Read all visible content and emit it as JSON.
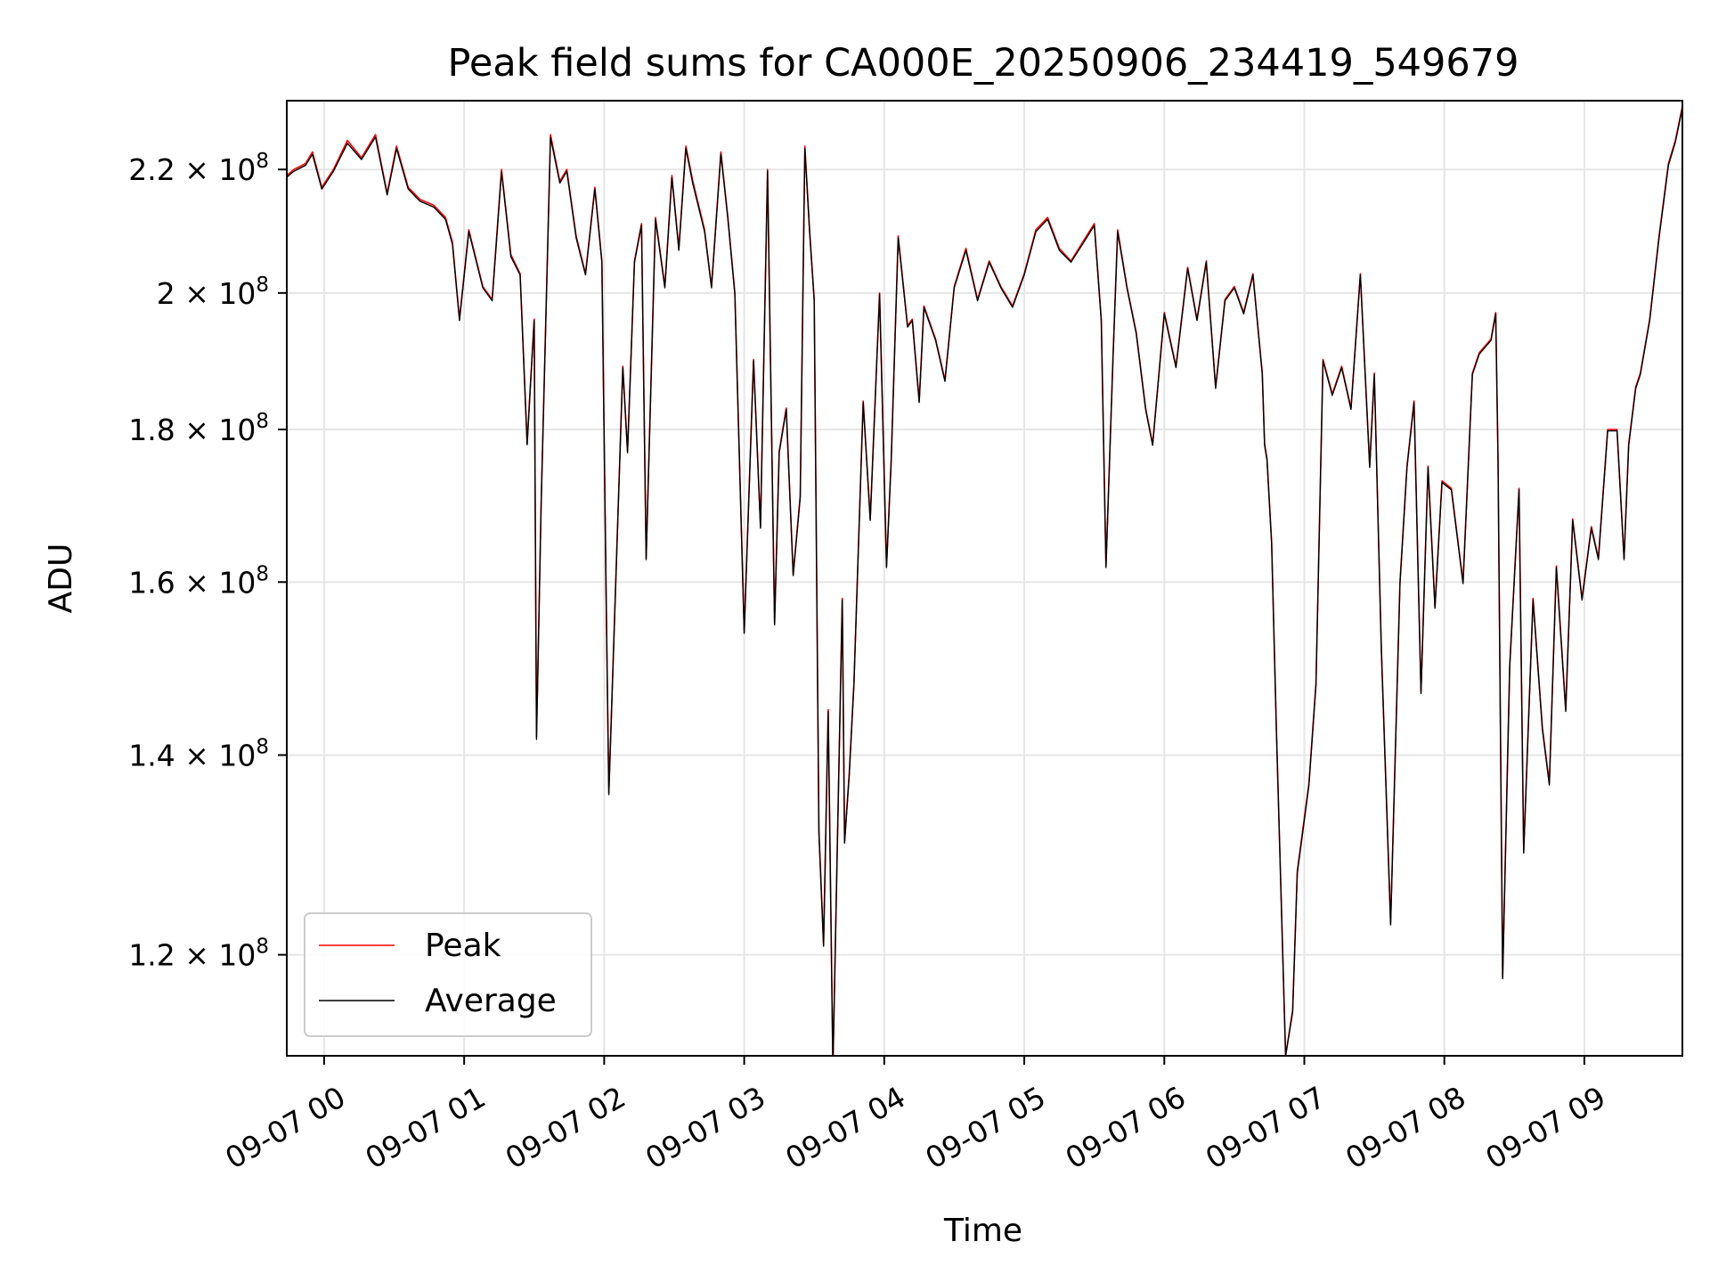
{
  "chart_data": {
    "type": "line",
    "title": "Peak field sums for CA000E_20250906_234419_549679",
    "xlabel": "Time",
    "ylabel": "ADU",
    "y_scale": "log",
    "ylim": [
      111000000,
      232000000
    ],
    "xlim": [
      "2025-09-06 23:44",
      "2025-09-07 09:42"
    ],
    "grid": true,
    "legend_position": "lower-left",
    "x_ticks": [
      {
        "t": "2025-09-07 00:00",
        "label": "09-07 00"
      },
      {
        "t": "2025-09-07 01:00",
        "label": "09-07 01"
      },
      {
        "t": "2025-09-07 02:00",
        "label": "09-07 02"
      },
      {
        "t": "2025-09-07 03:00",
        "label": "09-07 03"
      },
      {
        "t": "2025-09-07 04:00",
        "label": "09-07 04"
      },
      {
        "t": "2025-09-07 05:00",
        "label": "09-07 05"
      },
      {
        "t": "2025-09-07 06:00",
        "label": "09-07 06"
      },
      {
        "t": "2025-09-07 07:00",
        "label": "09-07 07"
      },
      {
        "t": "2025-09-07 08:00",
        "label": "09-07 08"
      },
      {
        "t": "2025-09-07 09:00",
        "label": "09-07 09"
      }
    ],
    "y_ticks": [
      {
        "value": 120000000,
        "mant": "1.2",
        "exp": "8"
      },
      {
        "value": 140000000,
        "mant": "1.4",
        "exp": "8"
      },
      {
        "value": 160000000,
        "mant": "1.6",
        "exp": "8"
      },
      {
        "value": 180000000,
        "mant": "1.8",
        "exp": "8"
      },
      {
        "value": 200000000,
        "mant": "2",
        "exp": "8"
      },
      {
        "value": 220000000,
        "mant": "2.2",
        "exp": "8"
      }
    ],
    "series": [
      {
        "name": "Peak",
        "color": "#ff0000",
        "x": [
          "2025-09-06 23:44",
          "2025-09-06 23:47",
          "2025-09-06 23:52",
          "2025-09-06 23:55",
          "2025-09-06 23:59",
          "2025-09-07 00:04",
          "2025-09-07 00:10",
          "2025-09-07 00:16",
          "2025-09-07 00:22",
          "2025-09-07 00:27",
          "2025-09-07 00:31",
          "2025-09-07 00:36",
          "2025-09-07 00:41",
          "2025-09-07 00:47",
          "2025-09-07 00:52",
          "2025-09-07 00:55",
          "2025-09-07 00:58",
          "2025-09-07 01:02",
          "2025-09-07 01:08",
          "2025-09-07 01:12",
          "2025-09-07 01:16",
          "2025-09-07 01:20",
          "2025-09-07 01:24",
          "2025-09-07 01:27",
          "2025-09-07 01:28",
          "2025-09-07 01:30",
          "2025-09-07 01:31",
          "2025-09-07 01:33",
          "2025-09-07 01:37",
          "2025-09-07 01:41",
          "2025-09-07 01:44",
          "2025-09-07 01:48",
          "2025-09-07 01:52",
          "2025-09-07 01:56",
          "2025-09-07 01:59",
          "2025-09-07 02:01",
          "2025-09-07 02:02",
          "2025-09-07 02:04",
          "2025-09-07 02:08",
          "2025-09-07 02:10",
          "2025-09-07 02:13",
          "2025-09-07 02:16",
          "2025-09-07 02:18",
          "2025-09-07 02:22",
          "2025-09-07 02:26",
          "2025-09-07 02:29",
          "2025-09-07 02:32",
          "2025-09-07 02:35",
          "2025-09-07 02:38",
          "2025-09-07 02:43",
          "2025-09-07 02:46",
          "2025-09-07 02:50",
          "2025-09-07 02:53",
          "2025-09-07 02:56",
          "2025-09-07 03:00",
          "2025-09-07 03:04",
          "2025-09-07 03:07",
          "2025-09-07 03:10",
          "2025-09-07 03:13",
          "2025-09-07 03:15",
          "2025-09-07 03:18",
          "2025-09-07 03:21",
          "2025-09-07 03:24",
          "2025-09-07 03:26",
          "2025-09-07 03:28",
          "2025-09-07 03:30",
          "2025-09-07 03:32",
          "2025-09-07 03:34",
          "2025-09-07 03:36",
          "2025-09-07 03:38",
          "2025-09-07 03:42",
          "2025-09-07 03:43",
          "2025-09-07 03:45",
          "2025-09-07 03:47",
          "2025-09-07 03:51",
          "2025-09-07 03:54",
          "2025-09-07 03:58",
          "2025-09-07 04:01",
          "2025-09-07 04:03",
          "2025-09-07 04:06",
          "2025-09-07 04:10",
          "2025-09-07 04:12",
          "2025-09-07 04:15",
          "2025-09-07 04:17",
          "2025-09-07 04:22",
          "2025-09-07 04:26",
          "2025-09-07 04:30",
          "2025-09-07 04:35",
          "2025-09-07 04:40",
          "2025-09-07 04:45",
          "2025-09-07 04:50",
          "2025-09-07 04:55",
          "2025-09-07 05:00",
          "2025-09-07 05:05",
          "2025-09-07 05:10",
          "2025-09-07 05:15",
          "2025-09-07 05:20",
          "2025-09-07 05:25",
          "2025-09-07 05:30",
          "2025-09-07 05:33",
          "2025-09-07 05:35",
          "2025-09-07 05:38",
          "2025-09-07 05:40",
          "2025-09-07 05:44",
          "2025-09-07 05:48",
          "2025-09-07 05:52",
          "2025-09-07 05:55",
          "2025-09-07 06:00",
          "2025-09-07 06:05",
          "2025-09-07 06:10",
          "2025-09-07 06:14",
          "2025-09-07 06:18",
          "2025-09-07 06:22",
          "2025-09-07 06:26",
          "2025-09-07 06:30",
          "2025-09-07 06:34",
          "2025-09-07 06:38",
          "2025-09-07 06:42",
          "2025-09-07 06:43",
          "2025-09-07 06:44",
          "2025-09-07 06:46",
          "2025-09-07 06:48",
          "2025-09-07 06:52",
          "2025-09-07 06:55",
          "2025-09-07 06:57",
          "2025-09-07 07:02",
          "2025-09-07 07:05",
          "2025-09-07 07:08",
          "2025-09-07 07:12",
          "2025-09-07 07:16",
          "2025-09-07 07:20",
          "2025-09-07 07:24",
          "2025-09-07 07:28",
          "2025-09-07 07:30",
          "2025-09-07 07:33",
          "2025-09-07 07:37",
          "2025-09-07 07:41",
          "2025-09-07 07:44",
          "2025-09-07 07:47",
          "2025-09-07 07:50",
          "2025-09-07 07:53",
          "2025-09-07 07:56",
          "2025-09-07 07:59",
          "2025-09-07 08:03",
          "2025-09-07 08:08",
          "2025-09-07 08:12",
          "2025-09-07 08:15",
          "2025-09-07 08:20",
          "2025-09-07 08:22",
          "2025-09-07 08:23",
          "2025-09-07 08:25",
          "2025-09-07 08:28",
          "2025-09-07 08:32",
          "2025-09-07 08:34",
          "2025-09-07 08:38",
          "2025-09-07 08:42",
          "2025-09-07 08:45",
          "2025-09-07 08:48",
          "2025-09-07 08:52",
          "2025-09-07 08:55",
          "2025-09-07 08:59",
          "2025-09-07 09:03",
          "2025-09-07 09:06",
          "2025-09-07 09:10",
          "2025-09-07 09:14",
          "2025-09-07 09:17",
          "2025-09-07 09:19",
          "2025-09-07 09:22",
          "2025-09-07 09:24",
          "2025-09-07 09:28",
          "2025-09-07 09:32",
          "2025-09-07 09:36",
          "2025-09-07 09:39",
          "2025-09-07 09:42"
        ],
        "y": [
          219000000,
          220000000,
          221000000,
          223000000,
          217000000,
          220000000,
          225000000,
          222000000,
          226000000,
          216000000,
          224000000,
          217000000,
          215000000,
          214000000,
          212000000,
          208000000,
          196000000,
          210000000,
          201000000,
          199000000,
          220000000,
          206000000,
          203000000,
          178000000,
          184000000,
          196000000,
          142000000,
          170000000,
          226000000,
          218000000,
          220000000,
          209000000,
          203000000,
          217000000,
          205000000,
          155000000,
          136000000,
          152000000,
          189000000,
          177000000,
          205000000,
          211000000,
          163000000,
          212000000,
          201000000,
          219000000,
          207000000,
          224000000,
          218000000,
          210000000,
          201000000,
          223000000,
          212000000,
          200000000,
          154000000,
          190000000,
          167000000,
          220000000,
          155000000,
          177000000,
          183000000,
          161000000,
          171000000,
          224000000,
          210000000,
          199000000,
          132000000,
          121000000,
          145000000,
          110000000,
          158000000,
          131000000,
          138000000,
          148000000,
          184000000,
          168000000,
          200000000,
          162000000,
          176000000,
          209000000,
          195000000,
          196000000,
          184000000,
          198000000,
          193000000,
          187000000,
          201000000,
          207000000,
          199000000,
          205000000,
          201000000,
          198000000,
          203000000,
          210000000,
          212000000,
          207000000,
          205000000,
          208000000,
          211000000,
          196000000,
          162000000,
          190000000,
          210000000,
          201000000,
          194000000,
          183000000,
          178000000,
          197000000,
          189000000,
          204000000,
          196000000,
          205000000,
          186000000,
          199000000,
          201000000,
          197000000,
          203000000,
          188000000,
          178000000,
          176000000,
          165000000,
          143000000,
          111000000,
          115000000,
          128000000,
          137000000,
          148000000,
          190000000,
          185000000,
          189000000,
          183000000,
          203000000,
          175000000,
          188000000,
          152000000,
          123000000,
          160000000,
          175000000,
          184000000,
          147000000,
          175000000,
          157000000,
          173000000,
          172000000,
          160000000,
          188000000,
          191000000,
          193000000,
          197000000,
          176000000,
          118000000,
          150000000,
          172000000,
          130000000,
          158000000,
          143000000,
          137000000,
          162000000,
          145000000,
          168000000,
          158000000,
          167000000,
          163000000,
          180000000,
          180000000,
          163000000,
          178000000,
          186000000,
          188000000,
          196000000,
          209000000,
          221000000,
          225000000,
          231000000
        ]
      },
      {
        "name": "Average",
        "color": "#000000",
        "x": [
          "2025-09-06 23:44",
          "2025-09-06 23:47",
          "2025-09-06 23:52",
          "2025-09-06 23:55",
          "2025-09-06 23:59",
          "2025-09-07 00:04",
          "2025-09-07 00:10",
          "2025-09-07 00:16",
          "2025-09-07 00:22",
          "2025-09-07 00:27",
          "2025-09-07 00:31",
          "2025-09-07 00:36",
          "2025-09-07 00:41",
          "2025-09-07 00:47",
          "2025-09-07 00:52",
          "2025-09-07 00:55",
          "2025-09-07 00:58",
          "2025-09-07 01:02",
          "2025-09-07 01:08",
          "2025-09-07 01:12",
          "2025-09-07 01:16",
          "2025-09-07 01:20",
          "2025-09-07 01:24",
          "2025-09-07 01:27",
          "2025-09-07 01:28",
          "2025-09-07 01:30",
          "2025-09-07 01:31",
          "2025-09-07 01:33",
          "2025-09-07 01:37",
          "2025-09-07 01:41",
          "2025-09-07 01:44",
          "2025-09-07 01:48",
          "2025-09-07 01:52",
          "2025-09-07 01:56",
          "2025-09-07 01:59",
          "2025-09-07 02:01",
          "2025-09-07 02:02",
          "2025-09-07 02:04",
          "2025-09-07 02:08",
          "2025-09-07 02:10",
          "2025-09-07 02:13",
          "2025-09-07 02:16",
          "2025-09-07 02:18",
          "2025-09-07 02:22",
          "2025-09-07 02:26",
          "2025-09-07 02:29",
          "2025-09-07 02:32",
          "2025-09-07 02:35",
          "2025-09-07 02:38",
          "2025-09-07 02:43",
          "2025-09-07 02:46",
          "2025-09-07 02:50",
          "2025-09-07 02:53",
          "2025-09-07 02:56",
          "2025-09-07 03:00",
          "2025-09-07 03:04",
          "2025-09-07 03:07",
          "2025-09-07 03:10",
          "2025-09-07 03:13",
          "2025-09-07 03:15",
          "2025-09-07 03:18",
          "2025-09-07 03:21",
          "2025-09-07 03:24",
          "2025-09-07 03:26",
          "2025-09-07 03:28",
          "2025-09-07 03:30",
          "2025-09-07 03:32",
          "2025-09-07 03:34",
          "2025-09-07 03:36",
          "2025-09-07 03:38",
          "2025-09-07 03:42",
          "2025-09-07 03:43",
          "2025-09-07 03:45",
          "2025-09-07 03:47",
          "2025-09-07 03:51",
          "2025-09-07 03:54",
          "2025-09-07 03:58",
          "2025-09-07 04:01",
          "2025-09-07 04:03",
          "2025-09-07 04:06",
          "2025-09-07 04:10",
          "2025-09-07 04:12",
          "2025-09-07 04:15",
          "2025-09-07 04:17",
          "2025-09-07 04:22",
          "2025-09-07 04:26",
          "2025-09-07 04:30",
          "2025-09-07 04:35",
          "2025-09-07 04:40",
          "2025-09-07 04:45",
          "2025-09-07 04:50",
          "2025-09-07 04:55",
          "2025-09-07 05:00",
          "2025-09-07 05:05",
          "2025-09-07 05:10",
          "2025-09-07 05:15",
          "2025-09-07 05:20",
          "2025-09-07 05:25",
          "2025-09-07 05:30",
          "2025-09-07 05:33",
          "2025-09-07 05:35",
          "2025-09-07 05:38",
          "2025-09-07 05:40",
          "2025-09-07 05:44",
          "2025-09-07 05:48",
          "2025-09-07 05:52",
          "2025-09-07 05:55",
          "2025-09-07 06:00",
          "2025-09-07 06:05",
          "2025-09-07 06:10",
          "2025-09-07 06:14",
          "2025-09-07 06:18",
          "2025-09-07 06:22",
          "2025-09-07 06:26",
          "2025-09-07 06:30",
          "2025-09-07 06:34",
          "2025-09-07 06:38",
          "2025-09-07 06:42",
          "2025-09-07 06:43",
          "2025-09-07 06:44",
          "2025-09-07 06:46",
          "2025-09-07 06:48",
          "2025-09-07 06:52",
          "2025-09-07 06:55",
          "2025-09-07 06:57",
          "2025-09-07 07:02",
          "2025-09-07 07:05",
          "2025-09-07 07:08",
          "2025-09-07 07:12",
          "2025-09-07 07:16",
          "2025-09-07 07:20",
          "2025-09-07 07:24",
          "2025-09-07 07:28",
          "2025-09-07 07:30",
          "2025-09-07 07:33",
          "2025-09-07 07:37",
          "2025-09-07 07:41",
          "2025-09-07 07:44",
          "2025-09-07 07:47",
          "2025-09-07 07:50",
          "2025-09-07 07:53",
          "2025-09-07 07:56",
          "2025-09-07 07:59",
          "2025-09-07 08:03",
          "2025-09-07 08:08",
          "2025-09-07 08:12",
          "2025-09-07 08:15",
          "2025-09-07 08:20",
          "2025-09-07 08:22",
          "2025-09-07 08:23",
          "2025-09-07 08:25",
          "2025-09-07 08:28",
          "2025-09-07 08:32",
          "2025-09-07 08:34",
          "2025-09-07 08:38",
          "2025-09-07 08:42",
          "2025-09-07 08:45",
          "2025-09-07 08:48",
          "2025-09-07 08:52",
          "2025-09-07 08:55",
          "2025-09-07 08:59",
          "2025-09-07 09:03",
          "2025-09-07 09:06",
          "2025-09-07 09:10",
          "2025-09-07 09:14",
          "2025-09-07 09:17",
          "2025-09-07 09:19",
          "2025-09-07 09:22",
          "2025-09-07 09:24",
          "2025-09-07 09:28",
          "2025-09-07 09:32",
          "2025-09-07 09:36",
          "2025-09-07 09:39",
          "2025-09-07 09:42"
        ],
        "y": [
          218700000,
          219700000,
          220700000,
          222600000,
          216700000,
          219700000,
          224500000,
          221700000,
          225600000,
          215700000,
          223600000,
          216700000,
          214700000,
          213700000,
          211700000,
          207700000,
          195800000,
          209700000,
          200800000,
          198800000,
          219600000,
          205700000,
          202800000,
          177900000,
          183800000,
          195800000,
          141700000,
          169900000,
          225500000,
          217700000,
          219700000,
          208700000,
          202800000,
          216700000,
          204800000,
          154800000,
          135800000,
          151800000,
          188800000,
          176800000,
          204800000,
          210700000,
          162800000,
          211700000,
          200800000,
          218600000,
          206700000,
          223600000,
          217600000,
          209700000,
          200800000,
          222600000,
          211700000,
          199800000,
          153800000,
          189800000,
          166800000,
          219700000,
          154800000,
          176800000,
          182800000,
          160800000,
          170800000,
          223600000,
          209700000,
          198800000,
          131800000,
          120800000,
          144800000,
          110000000,
          157800000,
          130800000,
          137800000,
          147800000,
          183800000,
          167800000,
          199800000,
          161800000,
          175800000,
          208700000,
          194800000,
          195800000,
          183800000,
          197800000,
          192800000,
          186800000,
          200800000,
          206700000,
          198800000,
          204800000,
          200800000,
          197800000,
          202800000,
          209700000,
          211700000,
          206700000,
          204800000,
          207700000,
          210700000,
          195800000,
          161800000,
          189800000,
          209700000,
          200800000,
          193800000,
          182800000,
          177800000,
          196800000,
          188800000,
          203800000,
          195800000,
          204800000,
          185800000,
          198800000,
          200800000,
          196800000,
          202800000,
          187800000,
          177800000,
          175800000,
          164800000,
          142800000,
          111000000,
          114800000,
          127800000,
          136800000,
          147800000,
          189800000,
          184800000,
          188800000,
          182800000,
          202800000,
          174800000,
          187800000,
          151800000,
          122800000,
          159800000,
          174800000,
          183800000,
          146800000,
          174800000,
          156800000,
          172800000,
          171800000,
          159800000,
          187800000,
          190800000,
          192800000,
          196800000,
          175800000,
          117800000,
          149800000,
          171800000,
          129800000,
          157800000,
          142800000,
          136800000,
          161800000,
          144800000,
          167800000,
          157800000,
          166800000,
          162800000,
          179800000,
          179800000,
          162800000,
          177800000,
          185800000,
          187800000,
          195800000,
          208700000,
          220700000,
          224700000,
          230700000
        ]
      }
    ]
  }
}
